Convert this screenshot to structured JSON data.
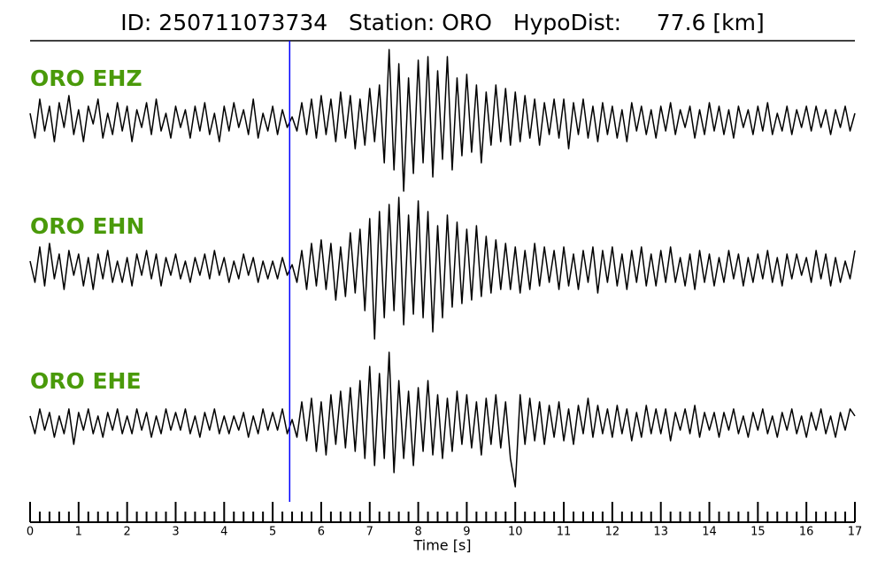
{
  "chart_data": {
    "type": "line",
    "title": "ID: 250711073734   Station: ORO   HypoDist:     77.6 [km]",
    "xlabel": "Time [s]",
    "xlim": [
      0,
      17
    ],
    "xticks": [
      0,
      1,
      2,
      3,
      4,
      5,
      6,
      7,
      8,
      9,
      10,
      11,
      12,
      13,
      14,
      15,
      16,
      17
    ],
    "xminorticks": [
      0.2,
      0.4,
      0.6,
      0.8,
      1.2,
      1.4,
      1.6,
      1.8,
      2.2,
      2.4,
      2.6,
      2.8,
      3.2,
      3.4,
      3.6,
      3.8,
      4.2,
      4.4,
      4.6,
      4.8,
      5.2,
      5.4,
      5.6,
      5.8,
      6.2,
      6.4,
      6.6,
      6.8,
      7.2,
      7.4,
      7.6,
      7.8,
      8.2,
      8.4,
      8.6,
      8.8,
      9.2,
      9.4,
      9.6,
      9.8,
      10.2,
      10.4,
      10.6,
      10.8,
      11.2,
      11.4,
      11.6,
      11.8,
      12.2,
      12.4,
      12.6,
      12.8,
      13.2,
      13.4,
      13.6,
      13.8,
      14.2,
      14.4,
      14.6,
      14.8,
      15.2,
      15.4,
      15.6,
      15.8,
      16.2,
      16.4,
      16.6,
      16.8
    ],
    "ylim": [
      -1,
      1
    ],
    "label_color": "#4a9a0a",
    "pick": {
      "x": 5.35,
      "color": "#0000ff"
    },
    "x": [
      0,
      0.1,
      0.2,
      0.3,
      0.4,
      0.5,
      0.6,
      0.7,
      0.8,
      0.9,
      1,
      1.1,
      1.2,
      1.3,
      1.4,
      1.5,
      1.6,
      1.7,
      1.8,
      1.9,
      2,
      2.1,
      2.2,
      2.3,
      2.4,
      2.5,
      2.6,
      2.7,
      2.8,
      2.9,
      3,
      3.1,
      3.2,
      3.3,
      3.4,
      3.5,
      3.6,
      3.7,
      3.8,
      3.9,
      4,
      4.1,
      4.2,
      4.3,
      4.4,
      4.5,
      4.6,
      4.7,
      4.8,
      4.9,
      5,
      5.1,
      5.2,
      5.3,
      5.4,
      5.5,
      5.6,
      5.7,
      5.8,
      5.9,
      6,
      6.1,
      6.2,
      6.3,
      6.4,
      6.5,
      6.6,
      6.7,
      6.8,
      6.9,
      7,
      7.1,
      7.2,
      7.3,
      7.4,
      7.5,
      7.6,
      7.7,
      7.8,
      7.9,
      8,
      8.1,
      8.2,
      8.3,
      8.4,
      8.5,
      8.6,
      8.7,
      8.8,
      8.9,
      9,
      9.1,
      9.2,
      9.3,
      9.4,
      9.5,
      9.6,
      9.7,
      9.8,
      9.9,
      10,
      10.1,
      10.2,
      10.3,
      10.4,
      10.5,
      10.6,
      10.7,
      10.8,
      10.9,
      11,
      11.1,
      11.2,
      11.3,
      11.4,
      11.5,
      11.6,
      11.7,
      11.8,
      11.9,
      12,
      12.1,
      12.2,
      12.3,
      12.4,
      12.5,
      12.6,
      12.7,
      12.8,
      12.9,
      13,
      13.1,
      13.2,
      13.3,
      13.4,
      13.5,
      13.6,
      13.7,
      13.8,
      13.9,
      14,
      14.1,
      14.2,
      14.3,
      14.4,
      14.5,
      14.6,
      14.7,
      14.8,
      14.9,
      15,
      15.1,
      15.2,
      15.3,
      15.4,
      15.5,
      15.6,
      15.7,
      15.8,
      15.9,
      16,
      16.1,
      16.2,
      16.3,
      16.4,
      16.5,
      16.6,
      16.7,
      16.8,
      16.9,
      17
    ],
    "series": [
      {
        "name": "ORO EHZ",
        "color": "#000000",
        "values": [
          0.1,
          -0.25,
          0.3,
          -0.15,
          0.2,
          -0.3,
          0.25,
          -0.1,
          0.35,
          -0.2,
          0.15,
          -0.3,
          0.2,
          -0.05,
          0.3,
          -0.25,
          0.1,
          -0.2,
          0.25,
          -0.15,
          0.2,
          -0.3,
          0.15,
          -0.1,
          0.25,
          -0.2,
          0.3,
          -0.15,
          0.1,
          -0.25,
          0.2,
          -0.1,
          0.15,
          -0.25,
          0.2,
          -0.15,
          0.25,
          -0.2,
          0.1,
          -0.3,
          0.2,
          -0.15,
          0.25,
          -0.1,
          0.15,
          -0.2,
          0.3,
          -0.25,
          0.1,
          -0.15,
          0.2,
          -0.2,
          0.15,
          -0.1,
          0.05,
          -0.15,
          0.25,
          -0.2,
          0.3,
          -0.25,
          0.35,
          -0.2,
          0.3,
          -0.3,
          0.4,
          -0.25,
          0.35,
          -0.4,
          0.3,
          -0.35,
          0.45,
          -0.3,
          0.5,
          -0.6,
          1.0,
          -0.7,
          0.8,
          -1.0,
          0.6,
          -0.75,
          0.85,
          -0.6,
          0.9,
          -0.8,
          0.7,
          -0.55,
          0.9,
          -0.7,
          0.6,
          -0.5,
          0.65,
          -0.45,
          0.5,
          -0.6,
          0.4,
          -0.35,
          0.5,
          -0.3,
          0.45,
          -0.35,
          0.4,
          -0.3,
          0.35,
          -0.25,
          0.3,
          -0.35,
          0.25,
          -0.2,
          0.3,
          -0.25,
          0.3,
          -0.4,
          0.25,
          -0.2,
          0.3,
          -0.25,
          0.2,
          -0.3,
          0.25,
          -0.2,
          0.2,
          -0.25,
          0.15,
          -0.3,
          0.25,
          -0.15,
          0.2,
          -0.2,
          0.15,
          -0.25,
          0.2,
          -0.15,
          0.25,
          -0.2,
          0.15,
          -0.1,
          0.2,
          -0.25,
          0.15,
          -0.2,
          0.25,
          -0.15,
          0.2,
          -0.2,
          0.15,
          -0.25,
          0.2,
          -0.1,
          0.15,
          -0.2,
          0.2,
          -0.15,
          0.25,
          -0.2,
          0.1,
          -0.15,
          0.2,
          -0.2,
          0.15,
          -0.1,
          0.2,
          -0.15,
          0.2,
          -0.1,
          0.15,
          -0.2,
          0.15,
          -0.1,
          0.2,
          -0.15,
          0.1
        ]
      },
      {
        "name": "ORO EHN",
        "color": "#000000",
        "values": [
          0.1,
          -0.2,
          0.3,
          -0.25,
          0.35,
          -0.15,
          0.2,
          -0.3,
          0.25,
          -0.1,
          0.2,
          -0.25,
          0.15,
          -0.3,
          0.2,
          -0.15,
          0.25,
          -0.2,
          0.1,
          -0.2,
          0.15,
          -0.25,
          0.2,
          -0.1,
          0.25,
          -0.15,
          0.2,
          -0.25,
          0.15,
          -0.1,
          0.2,
          -0.15,
          0.1,
          -0.2,
          0.15,
          -0.1,
          0.2,
          -0.15,
          0.25,
          -0.1,
          0.15,
          -0.2,
          0.1,
          -0.15,
          0.2,
          -0.1,
          0.15,
          -0.2,
          0.1,
          -0.15,
          0.1,
          -0.15,
          0.15,
          -0.1,
          0.05,
          -0.2,
          0.25,
          -0.3,
          0.35,
          -0.25,
          0.4,
          -0.3,
          0.35,
          -0.45,
          0.3,
          -0.4,
          0.5,
          -0.35,
          0.55,
          -0.6,
          0.7,
          -1.0,
          0.8,
          -0.7,
          0.9,
          -0.6,
          1.0,
          -0.8,
          0.75,
          -0.65,
          0.95,
          -0.7,
          0.8,
          -0.9,
          0.6,
          -0.7,
          0.75,
          -0.55,
          0.65,
          -0.5,
          0.55,
          -0.45,
          0.6,
          -0.4,
          0.45,
          -0.35,
          0.4,
          -0.3,
          0.35,
          -0.3,
          0.3,
          -0.35,
          0.25,
          -0.3,
          0.35,
          -0.25,
          0.3,
          -0.2,
          0.25,
          -0.3,
          0.3,
          -0.25,
          0.2,
          -0.3,
          0.25,
          -0.2,
          0.3,
          -0.35,
          0.25,
          -0.2,
          0.3,
          -0.25,
          0.2,
          -0.3,
          0.25,
          -0.2,
          0.3,
          -0.25,
          0.2,
          -0.25,
          0.25,
          -0.2,
          0.3,
          -0.2,
          0.15,
          -0.25,
          0.2,
          -0.3,
          0.25,
          -0.2,
          0.2,
          -0.25,
          0.15,
          -0.2,
          0.25,
          -0.15,
          0.2,
          -0.25,
          0.15,
          -0.2,
          0.2,
          -0.15,
          0.25,
          -0.2,
          0.15,
          -0.25,
          0.2,
          -0.15,
          0.2,
          -0.1,
          0.15,
          -0.2,
          0.25,
          -0.15,
          0.2,
          -0.25,
          0.15,
          -0.2,
          0.1,
          -0.15,
          0.25
        ]
      },
      {
        "name": "ORO EHE",
        "color": "#000000",
        "values": [
          0.1,
          -0.15,
          0.2,
          -0.1,
          0.15,
          -0.2,
          0.1,
          -0.15,
          0.2,
          -0.3,
          0.15,
          -0.1,
          0.2,
          -0.15,
          0.1,
          -0.2,
          0.15,
          -0.1,
          0.2,
          -0.15,
          0.1,
          -0.15,
          0.2,
          -0.1,
          0.15,
          -0.2,
          0.1,
          -0.15,
          0.2,
          -0.1,
          0.15,
          -0.1,
          0.2,
          -0.15,
          0.1,
          -0.2,
          0.15,
          -0.1,
          0.2,
          -0.15,
          0.1,
          -0.15,
          0.1,
          -0.1,
          0.15,
          -0.2,
          0.1,
          -0.15,
          0.2,
          -0.1,
          0.15,
          -0.1,
          0.2,
          -0.15,
          0.05,
          -0.2,
          0.3,
          -0.25,
          0.35,
          -0.4,
          0.3,
          -0.45,
          0.4,
          -0.3,
          0.45,
          -0.35,
          0.5,
          -0.4,
          0.6,
          -0.5,
          0.8,
          -0.6,
          0.7,
          -0.5,
          1.0,
          -0.7,
          0.6,
          -0.5,
          0.45,
          -0.6,
          0.5,
          -0.4,
          0.6,
          -0.45,
          0.4,
          -0.5,
          0.35,
          -0.4,
          0.45,
          -0.3,
          0.4,
          -0.35,
          0.3,
          -0.45,
          0.35,
          -0.3,
          0.4,
          -0.35,
          0.3,
          -0.5,
          -0.9,
          0.4,
          -0.3,
          0.35,
          -0.25,
          0.3,
          -0.3,
          0.25,
          -0.2,
          0.3,
          -0.25,
          0.2,
          -0.3,
          0.25,
          -0.15,
          0.35,
          -0.2,
          0.25,
          -0.15,
          0.2,
          -0.2,
          0.25,
          -0.15,
          0.2,
          -0.25,
          0.15,
          -0.2,
          0.25,
          -0.15,
          0.2,
          -0.15,
          0.2,
          -0.25,
          0.15,
          -0.1,
          0.2,
          -0.15,
          0.25,
          -0.2,
          0.15,
          -0.1,
          0.15,
          -0.2,
          0.15,
          -0.1,
          0.2,
          -0.15,
          0.1,
          -0.2,
          0.15,
          -0.1,
          0.2,
          -0.15,
          0.1,
          -0.2,
          0.15,
          -0.1,
          0.2,
          -0.15,
          0.1,
          -0.2,
          0.15,
          -0.1,
          0.2,
          -0.15,
          0.1,
          -0.2,
          0.15,
          -0.1,
          0.2,
          0.1
        ]
      }
    ]
  }
}
